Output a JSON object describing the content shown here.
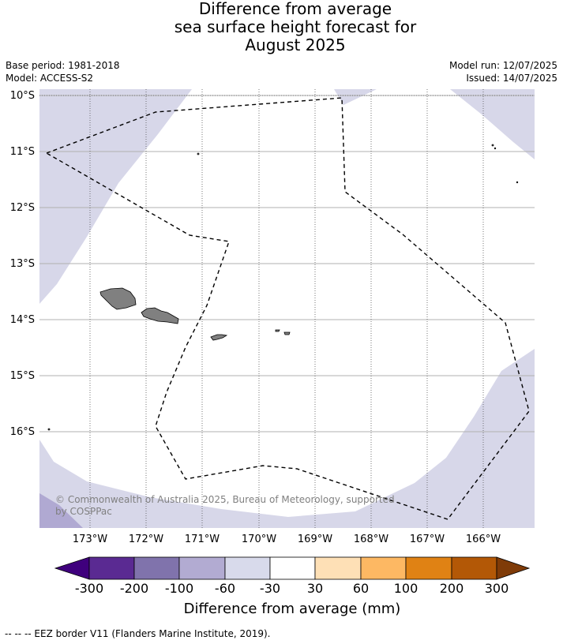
{
  "title": {
    "line1": "Difference from average",
    "line2": "sea surface height forecast for",
    "line3": "August 2025"
  },
  "meta": {
    "base_period": "Base period: 1981-2018",
    "model": "Model: ACCESS-S2",
    "model_run": "Model run: 12/07/2025",
    "issued": "Issued: 14/07/2025"
  },
  "map": {
    "lat_labels": [
      "10°S",
      "11°S",
      "12°S",
      "13°S",
      "14°S",
      "15°S",
      "16°S"
    ],
    "lon_labels": [
      "173°W",
      "172°W",
      "171°W",
      "170°W",
      "169°W",
      "168°W",
      "167°W",
      "166°W"
    ],
    "extent": {
      "lon_min": -173.9,
      "lon_max": -165.1,
      "lat_min": -17.75,
      "lat_max": -9.95
    },
    "copyright": "© Commonwealth of Australia 2025, Bureau of Meteorology, supported by COSPPac",
    "colors": {
      "band_-60_-30": "#d7d7e9",
      "band_-100_-60": "#b0a9d2",
      "land": "#808080",
      "ocean_-30_30": "#ffffff"
    }
  },
  "colorbar": {
    "ticks": [
      "-300",
      "-200",
      "-100",
      "-60",
      "-30",
      "30",
      "60",
      "100",
      "200",
      "300"
    ],
    "colors": [
      "#3f007d",
      "#5a2a92",
      "#8073ac",
      "#b2abd2",
      "#d8daeb",
      "#ffffff",
      "#fee0b6",
      "#fdb863",
      "#e08214",
      "#b35806",
      "#7f3b08"
    ],
    "label": "Difference from average (mm)"
  },
  "footnote": "-- -- -- EEZ border V11 (Flanders Marine Institute, 2019)."
}
